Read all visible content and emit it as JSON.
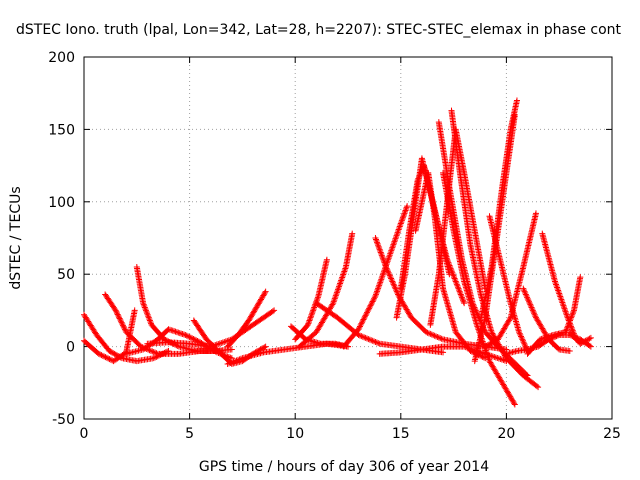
{
  "chart_data": {
    "type": "scatter",
    "title": "dSTEC Iono. truth (lpal, Lon=342, Lat=28, h=2207): STEC-STEC_elemax in phase cont",
    "xlabel": "GPS time / hours of day 306 of year 2014",
    "ylabel": "dSTEC  / TECUs",
    "xlim": [
      0,
      25
    ],
    "ylim": [
      -50,
      200
    ],
    "xticks": [
      0,
      5,
      10,
      15,
      20,
      25
    ],
    "yticks": [
      -50,
      0,
      50,
      100,
      150,
      200
    ],
    "grid": true,
    "marker": "+",
    "color": "#ff0000",
    "series": [
      {
        "x": [
          0,
          0.6,
          1.2,
          1.8,
          2.5,
          3.3,
          4.0
        ],
        "y": [
          22,
          8,
          -3,
          -8,
          -10,
          -8,
          -3
        ]
      },
      {
        "x": [
          0,
          0.7,
          1.4,
          2.0,
          2.4
        ],
        "y": [
          4,
          -5,
          -10,
          -4,
          25
        ]
      },
      {
        "x": [
          1.0,
          1.5,
          2.0,
          2.7,
          3.5,
          4.5,
          5.5,
          6.5
        ],
        "y": [
          36,
          25,
          10,
          0,
          -5,
          -5,
          -3,
          -3
        ]
      },
      {
        "x": [
          2.5,
          2.8,
          3.2,
          3.8,
          4.5,
          5.3,
          6.2,
          7.0
        ],
        "y": [
          55,
          30,
          15,
          5,
          0,
          -3,
          -3,
          -2
        ]
      },
      {
        "x": [
          2.0,
          2.8,
          3.5,
          4.0,
          4.8,
          5.5,
          6.3,
          7.0
        ],
        "y": [
          -5,
          -2,
          5,
          12,
          8,
          3,
          -4,
          -8
        ]
      },
      {
        "x": [
          5.2,
          5.8,
          6.5,
          7.0,
          7.5,
          8.0,
          8.6
        ],
        "y": [
          18,
          5,
          -5,
          -12,
          -10,
          -5,
          0
        ]
      },
      {
        "x": [
          6.8,
          7.3,
          7.8,
          8.2,
          8.6
        ],
        "y": [
          0,
          8,
          18,
          28,
          38
        ]
      },
      {
        "x": [
          6.8,
          7.5,
          8.5,
          9.5,
          10.5,
          11.5,
          12.5
        ],
        "y": [
          -12,
          -8,
          -4,
          -2,
          0,
          2,
          0
        ]
      },
      {
        "x": [
          3.0,
          4.0,
          5.0,
          6.0,
          7.0,
          8.0,
          9.0
        ],
        "y": [
          2,
          3,
          2,
          0,
          5,
          15,
          25
        ]
      },
      {
        "x": [
          10.0,
          10.6,
          11.1,
          11.5
        ],
        "y": [
          5,
          15,
          35,
          60
        ]
      },
      {
        "x": [
          9.8,
          10.5,
          11.2,
          11.9,
          12.5
        ],
        "y": [
          14,
          5,
          2,
          2,
          0
        ]
      },
      {
        "x": [
          10.2,
          11.0,
          11.8,
          12.4,
          12.7
        ],
        "y": [
          0,
          10,
          30,
          55,
          78
        ]
      },
      {
        "x": [
          11.0,
          12.0,
          13.0,
          14.0,
          15.0,
          16.0,
          17.0
        ],
        "y": [
          30,
          20,
          8,
          2,
          0,
          -2,
          -4
        ]
      },
      {
        "x": [
          13.8,
          14.3,
          14.9,
          15.5,
          16.2,
          17.0,
          18.0,
          19.0,
          20.0
        ],
        "y": [
          75,
          55,
          35,
          20,
          10,
          5,
          2,
          0,
          -2
        ]
      },
      {
        "x": [
          12.3,
          13.0,
          13.8,
          14.4,
          15.0,
          15.3
        ],
        "y": [
          0,
          12,
          35,
          60,
          85,
          97
        ]
      },
      {
        "x": [
          14.0,
          15.0,
          16.0,
          17.0,
          18.0,
          19.0,
          20.0
        ],
        "y": [
          -5,
          -4,
          -2,
          0,
          0,
          -5,
          -10
        ]
      },
      {
        "x": [
          14.8,
          15.2,
          15.6,
          16.0,
          16.5,
          17.2,
          18.0
        ],
        "y": [
          20,
          50,
          90,
          130,
          100,
          60,
          30
        ]
      },
      {
        "x": [
          15.0,
          15.4,
          15.8,
          16.1,
          16.6,
          17.3
        ],
        "y": [
          40,
          80,
          115,
          125,
          95,
          50
        ]
      },
      {
        "x": [
          15.7,
          16.0,
          16.3,
          16.6,
          17.0,
          17.6,
          18.3,
          19.0
        ],
        "y": [
          80,
          100,
          120,
          90,
          40,
          10,
          -3,
          -8
        ]
      },
      {
        "x": [
          16.4,
          16.8,
          17.2,
          17.6,
          18.0,
          18.5,
          19.0
        ],
        "y": [
          15,
          50,
          100,
          150,
          120,
          80,
          40
        ]
      },
      {
        "x": [
          16.8,
          17.3,
          17.9,
          18.4,
          19.0,
          19.6,
          20.3,
          21.0
        ],
        "y": [
          155,
          110,
          60,
          30,
          10,
          0,
          -10,
          -20
        ]
      },
      {
        "x": [
          17.4,
          17.8,
          18.3,
          18.8,
          19.3,
          20.0,
          20.8,
          21.5
        ],
        "y": [
          163,
          120,
          70,
          35,
          10,
          -8,
          -20,
          -28
        ]
      },
      {
        "x": [
          17.0,
          17.5,
          18.0,
          18.6,
          19.2,
          20.0,
          20.4
        ],
        "y": [
          120,
          80,
          45,
          15,
          -10,
          -30,
          -40
        ]
      },
      {
        "x": [
          18.8,
          19.3,
          19.8,
          20.2,
          20.5
        ],
        "y": [
          20,
          55,
          110,
          150,
          170
        ]
      },
      {
        "x": [
          18.5,
          19.0,
          19.5,
          20.0,
          20.4
        ],
        "y": [
          -10,
          20,
          70,
          120,
          160
        ]
      },
      {
        "x": [
          19.2,
          19.7,
          20.2,
          20.6,
          21.0
        ],
        "y": [
          90,
          60,
          30,
          10,
          -3
        ]
      },
      {
        "x": [
          19.0,
          19.6,
          20.2,
          20.8,
          21.4
        ],
        "y": [
          0,
          5,
          20,
          55,
          92
        ]
      },
      {
        "x": [
          20.0,
          20.5,
          21.0,
          21.5,
          22.0,
          22.5,
          23.0,
          23.5,
          24.0
        ],
        "y": [
          -5,
          -3,
          -2,
          0,
          5,
          8,
          8,
          5,
          0
        ]
      },
      {
        "x": [
          21.7,
          22.3,
          22.9,
          23.3
        ],
        "y": [
          78,
          45,
          20,
          5
        ]
      },
      {
        "x": [
          21.0,
          21.6,
          22.2,
          22.8,
          23.2,
          23.5
        ],
        "y": [
          -5,
          5,
          8,
          10,
          25,
          48
        ]
      },
      {
        "x": [
          23.0,
          23.5,
          24.0
        ],
        "y": [
          10,
          2,
          6
        ]
      },
      {
        "x": [
          20.8,
          21.4,
          22.0,
          22.5,
          23.0
        ],
        "y": [
          40,
          20,
          5,
          -2,
          -3
        ]
      }
    ]
  }
}
